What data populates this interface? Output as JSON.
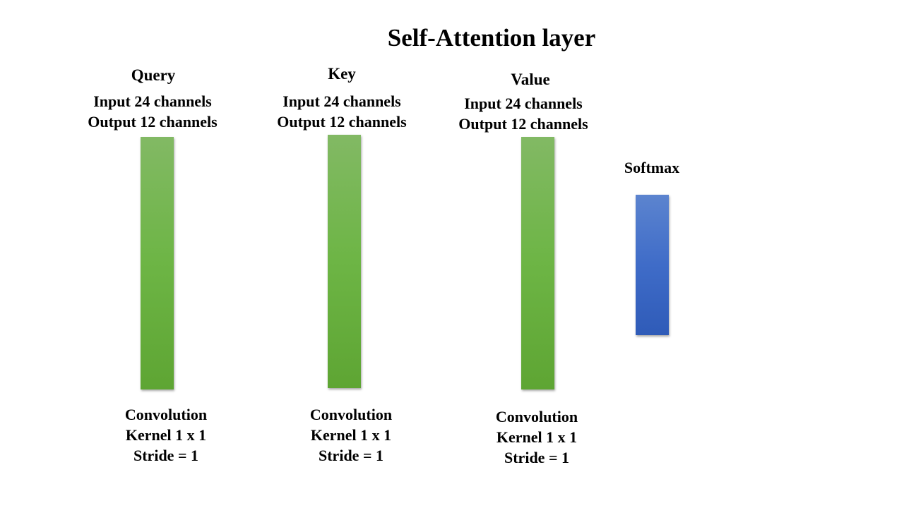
{
  "title": "Self-Attention layer",
  "blocks": [
    {
      "heading": "Query",
      "io": [
        "Input 24 channels",
        "Output 12 channels"
      ],
      "op": [
        "Convolution",
        "Kernel 1 x 1",
        "Stride = 1"
      ],
      "color": "#6db545"
    },
    {
      "heading": "Key",
      "io": [
        "Input 24 channels",
        "Output 12 channels"
      ],
      "op": [
        "Convolution",
        "Kernel 1 x 1",
        "Stride = 1"
      ],
      "color": "#6db545"
    },
    {
      "heading": "Value",
      "io": [
        "Input 24 channels",
        "Output 12 channels"
      ],
      "op": [
        "Convolution",
        "Kernel 1 x 1",
        "Stride = 1"
      ],
      "color": "#6db545"
    },
    {
      "heading": "Softmax",
      "color": "#3f6cc8"
    }
  ]
}
